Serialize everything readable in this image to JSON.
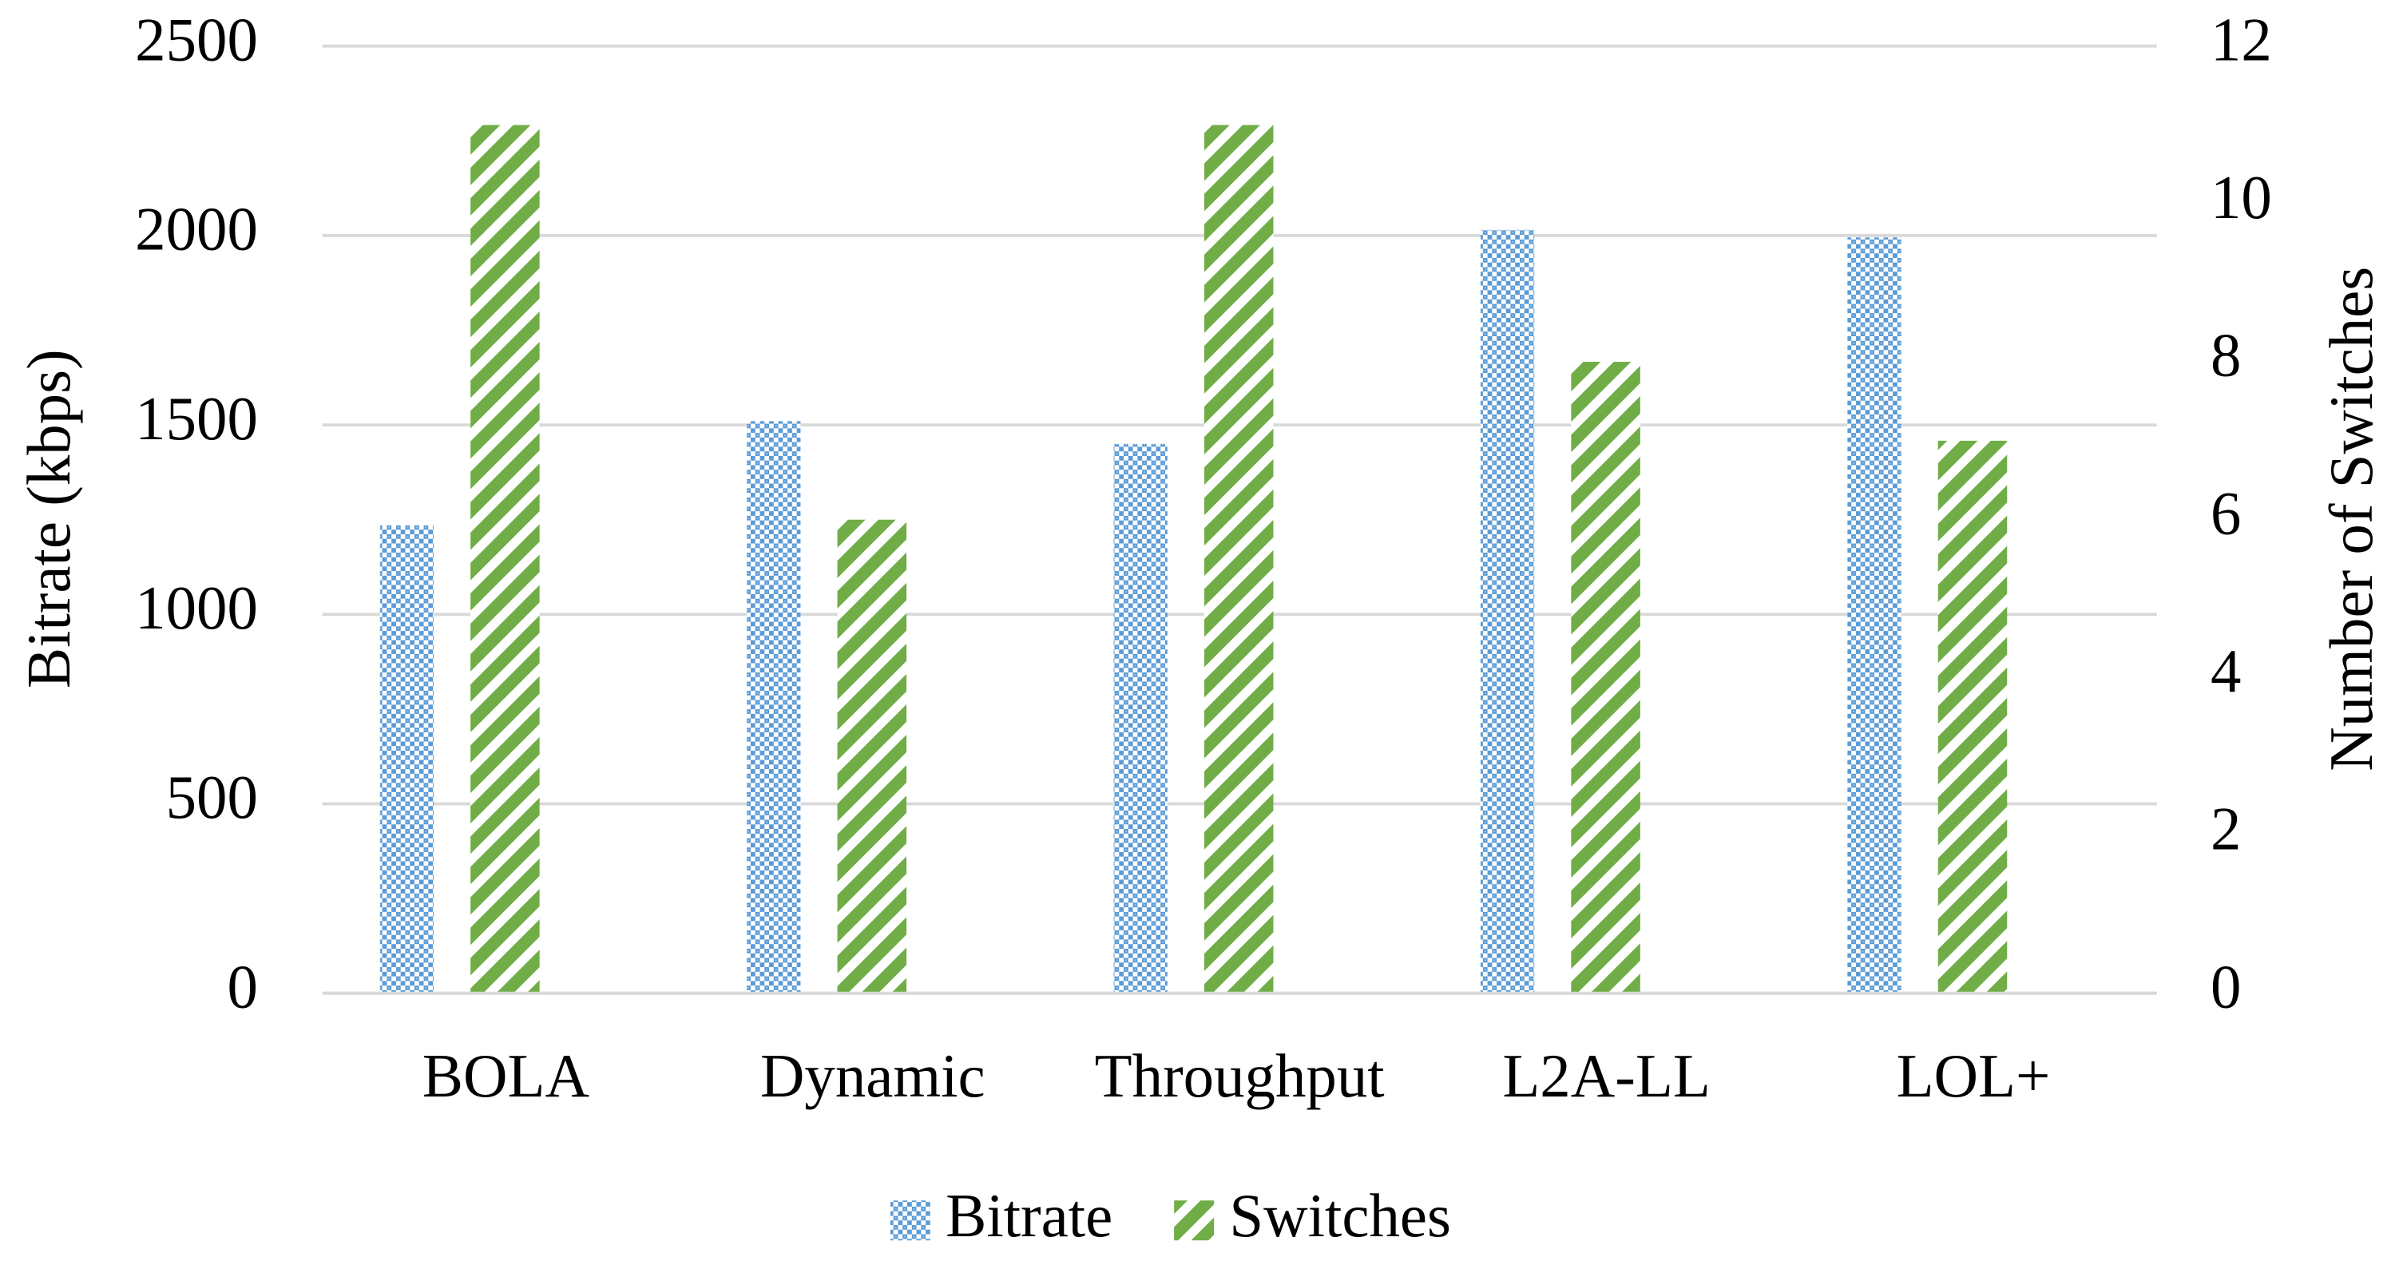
{
  "chart_data": {
    "type": "bar",
    "categories": [
      "BOLA",
      "Dynamic",
      "Throughput",
      "L2A-LL",
      "LOL+"
    ],
    "y_label": "Bitrate (kbps)",
    "y2_label": "Number of Switches",
    "series": [
      {
        "name": "Bitrate",
        "color": "#5b9bd5",
        "values": [
          1235,
          1510,
          1450,
          2015,
          1995
        ]
      },
      {
        "name": "Switches",
        "color": "#70ad47",
        "axis": "y2",
        "values": [
          11,
          6,
          11,
          8,
          7
        ]
      }
    ],
    "ylim": [
      0,
      2500
    ],
    "yticks": [
      0,
      500,
      1000,
      1500,
      2000,
      2500
    ],
    "y2lim": [
      0,
      12
    ],
    "y2ticks": [
      0,
      2,
      4,
      6,
      8,
      10,
      12
    ],
    "grid": true,
    "legend": "bottom"
  }
}
